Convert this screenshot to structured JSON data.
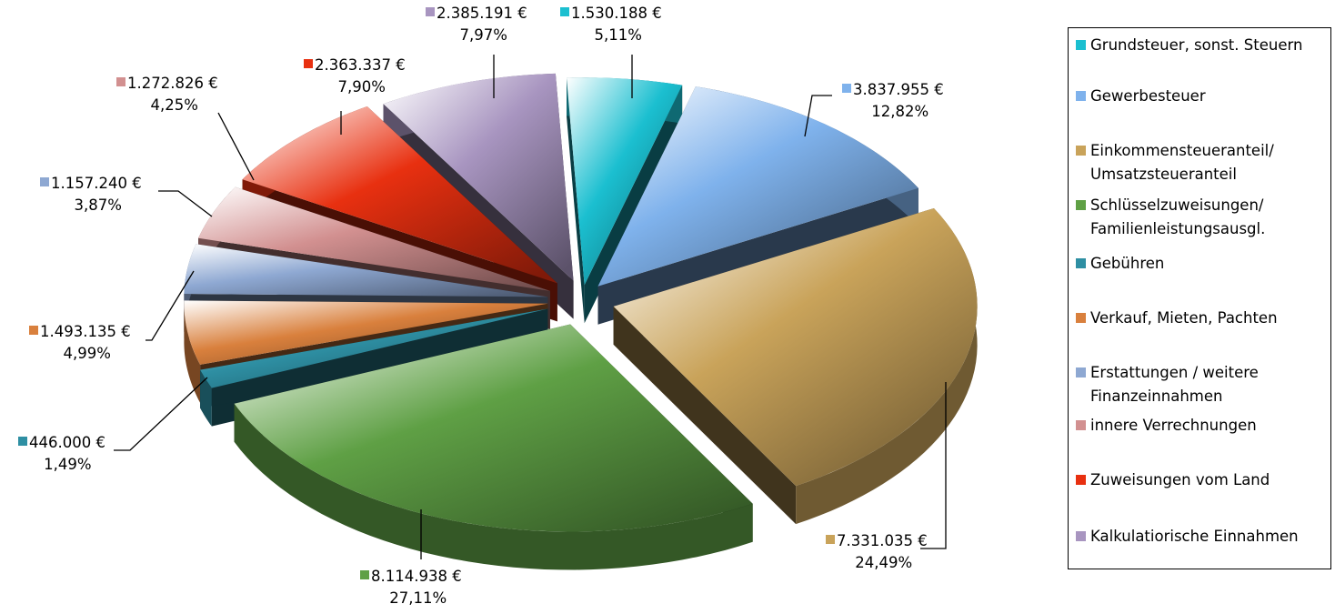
{
  "chart_data": {
    "type": "pie",
    "title": "",
    "slices": [
      {
        "label": "Grundsteuer, sonst. Steuern",
        "amount": "1.530.188 €",
        "percent_label": "5,11%",
        "value": 1530188,
        "percent": 5.11,
        "color": "#1BBFD0",
        "legend_lines": [
          "Grundsteuer, sonst. Steuern"
        ]
      },
      {
        "label": "Gewerbesteuer",
        "amount": "3.837.955 €",
        "percent_label": "12,82%",
        "value": 3837955,
        "percent": 12.82,
        "color": "#7FB2EC",
        "legend_lines": [
          "Gewerbesteuer"
        ]
      },
      {
        "label": "Einkommensteueranteil/ Umsatzsteueranteil",
        "amount": "7.331.035 €",
        "percent_label": "24,49%",
        "value": 7331035,
        "percent": 24.49,
        "color": "#C9A35A",
        "legend_lines": [
          "Einkommensteueranteil/",
          "Umsatzsteueranteil"
        ]
      },
      {
        "label": "Schlüsselzuweisungen/ Familienleistungsausgl.",
        "amount": "8.114.938 €",
        "percent_label": "27,11%",
        "value": 8114938,
        "percent": 27.11,
        "color": "#5FA045",
        "legend_lines": [
          "Schlüsselzuweisungen/",
          "Familienleistungsausgl."
        ]
      },
      {
        "label": "Gebühren",
        "amount": "446.000 €",
        "percent_label": "1,49%",
        "value": 446000,
        "percent": 1.49,
        "color": "#2E8FA3",
        "legend_lines": [
          "Gebühren"
        ]
      },
      {
        "label": "Verkauf, Mieten, Pachten",
        "amount": "1.493.135 €",
        "percent_label": "4,99%",
        "value": 1493135,
        "percent": 4.99,
        "color": "#D9803D",
        "legend_lines": [
          "Verkauf, Mieten, Pachten"
        ]
      },
      {
        "label": "Erstattungen / weitere Finanzeinnahmen",
        "amount": "1.157.240 €",
        "percent_label": "3,87%",
        "value": 1157240,
        "percent": 3.87,
        "color": "#8EA8D2",
        "legend_lines": [
          "Erstattungen / weitere",
          "Finanzeinnahmen"
        ]
      },
      {
        "label": "innere Verrechnungen",
        "amount": "1.272.826 €",
        "percent_label": "4,25%",
        "value": 1272826,
        "percent": 4.25,
        "color": "#D29090",
        "legend_lines": [
          "innere Verrechnungen"
        ]
      },
      {
        "label": "Zuweisungen vom Land",
        "amount": "2.363.337 €",
        "percent_label": "7,90%",
        "value": 2363337,
        "percent": 7.9,
        "color": "#E83010",
        "legend_lines": [
          "Zuweisungen vom Land"
        ]
      },
      {
        "label": "Kalkulatiorische Einnahmen",
        "amount": "2.385.191 €",
        "percent_label": "7,97%",
        "value": 2385191,
        "percent": 7.97,
        "color": "#A895C0",
        "legend_lines": [
          "Kalkulatiorische Einnahmen"
        ]
      }
    ],
    "legend_position": "right",
    "style": "3d-exploded"
  }
}
